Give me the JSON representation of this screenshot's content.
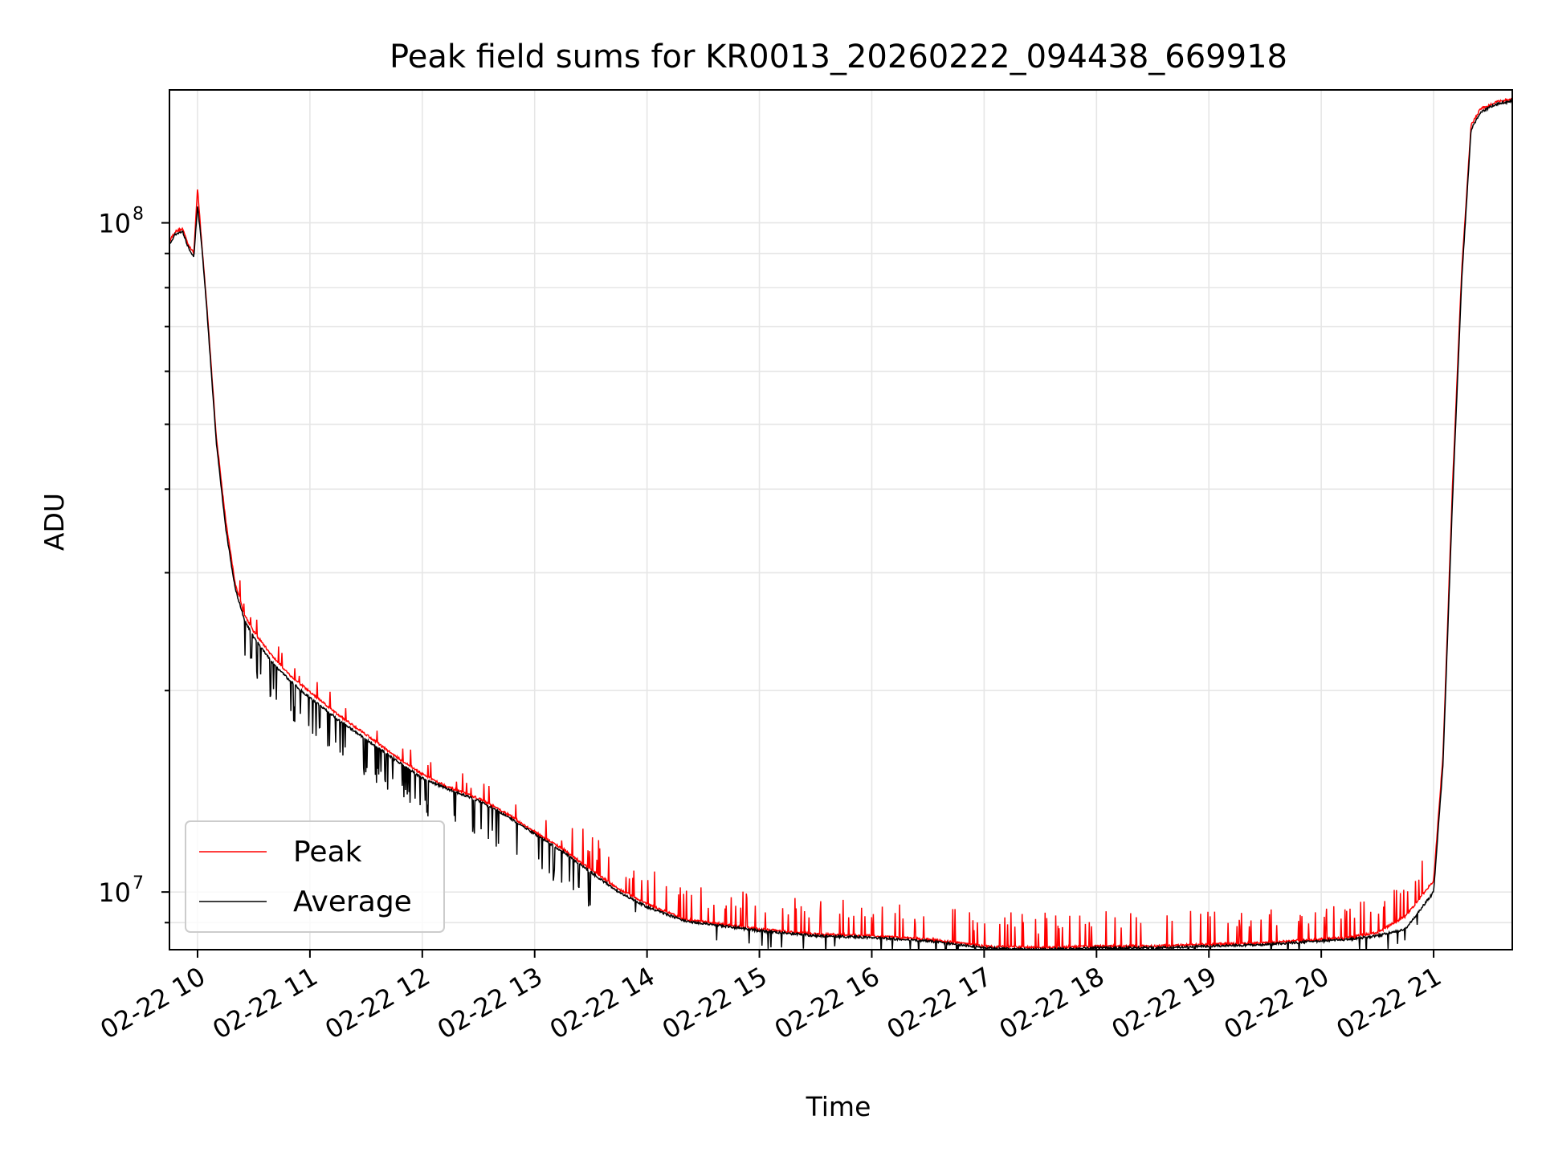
{
  "chart_data": {
    "type": "line",
    "title": "Peak field sums for KR0013_20260222_094438_669918",
    "xlabel": "Time",
    "ylabel": "ADU",
    "x_scale": "time",
    "y_scale": "log",
    "xlim": [
      "02-22 09:45",
      "02-22 21:42"
    ],
    "ylim": [
      8200000,
      158000000
    ],
    "grid": true,
    "legend_position": "lower-left",
    "x_tick_labels": [
      "02-22 10",
      "02-22 11",
      "02-22 12",
      "02-22 13",
      "02-22 14",
      "02-22 15",
      "02-22 16",
      "02-22 17",
      "02-22 18",
      "02-22 19",
      "02-22 20",
      "02-22 21"
    ],
    "x_tick_hours": [
      10,
      11,
      12,
      13,
      14,
      15,
      16,
      17,
      18,
      19,
      20,
      21
    ],
    "y_tick_labels": [
      {
        "base": "10",
        "exp": "7",
        "value": 10000000
      },
      {
        "base": "10",
        "exp": "8",
        "value": 100000000
      }
    ],
    "series": [
      {
        "name": "Peak",
        "color": "#ff0000",
        "x": [
          "02-22 09:45",
          "02-22 09:48",
          "02-22 09:52",
          "02-22 09:55",
          "02-22 09:58",
          "02-22 10:00",
          "02-22 10:02",
          "02-22 10:05",
          "02-22 10:10",
          "02-22 10:15",
          "02-22 10:20",
          "02-22 10:25",
          "02-22 10:30",
          "02-22 10:40",
          "02-22 10:50",
          "02-22 11:00",
          "02-22 11:15",
          "02-22 11:30",
          "02-22 11:45",
          "02-22 12:00",
          "02-22 12:15",
          "02-22 12:30",
          "02-22 12:45",
          "02-22 13:00",
          "02-22 13:15",
          "02-22 13:30",
          "02-22 13:45",
          "02-22 14:00",
          "02-22 14:20",
          "02-22 14:40",
          "02-22 15:00",
          "02-22 15:30",
          "02-22 16:00",
          "02-22 16:30",
          "02-22 17:00",
          "02-22 17:30",
          "02-22 18:00",
          "02-22 18:30",
          "02-22 19:00",
          "02-22 19:30",
          "02-22 20:00",
          "02-22 20:15",
          "02-22 20:30",
          "02-22 20:45",
          "02-22 21:00",
          "02-22 21:05",
          "02-22 21:10",
          "02-22 21:15",
          "02-22 21:20",
          "02-22 21:25",
          "02-22 21:30",
          "02-22 21:35",
          "02-22 21:42"
        ],
        "values": [
          94000000,
          97000000,
          98000000,
          93000000,
          90000000,
          113000000,
          95000000,
          75000000,
          48000000,
          36000000,
          29000000,
          26000000,
          24500000,
          22500000,
          21000000,
          19900000,
          18400000,
          17200000,
          16000000,
          15000000,
          14300000,
          13800000,
          13100000,
          12300000,
          11600000,
          10800000,
          10100000,
          9600000,
          9100000,
          8950000,
          8800000,
          8650000,
          8600000,
          8500000,
          8300000,
          8250000,
          8300000,
          8300000,
          8350000,
          8400000,
          8500000,
          8550000,
          8700000,
          9200000,
          10400000,
          16000000,
          40000000,
          85000000,
          140000000,
          148000000,
          150000000,
          152000000,
          153000000
        ]
      },
      {
        "name": "Average",
        "color": "#000000",
        "x": [
          "02-22 09:45",
          "02-22 09:48",
          "02-22 09:52",
          "02-22 09:55",
          "02-22 09:58",
          "02-22 10:00",
          "02-22 10:02",
          "02-22 10:05",
          "02-22 10:10",
          "02-22 10:15",
          "02-22 10:20",
          "02-22 10:25",
          "02-22 10:30",
          "02-22 10:40",
          "02-22 10:50",
          "02-22 11:00",
          "02-22 11:15",
          "02-22 11:30",
          "02-22 11:45",
          "02-22 12:00",
          "02-22 12:15",
          "02-22 12:30",
          "02-22 12:45",
          "02-22 13:00",
          "02-22 13:15",
          "02-22 13:30",
          "02-22 13:45",
          "02-22 14:00",
          "02-22 14:20",
          "02-22 14:40",
          "02-22 15:00",
          "02-22 15:30",
          "02-22 16:00",
          "02-22 16:30",
          "02-22 17:00",
          "02-22 17:30",
          "02-22 18:00",
          "02-22 18:30",
          "02-22 19:00",
          "02-22 19:30",
          "02-22 20:00",
          "02-22 20:15",
          "02-22 20:30",
          "02-22 20:45",
          "02-22 21:00",
          "02-22 21:05",
          "02-22 21:10",
          "02-22 21:15",
          "02-22 21:20",
          "02-22 21:25",
          "02-22 21:30",
          "02-22 21:35",
          "02-22 21:42"
        ],
        "values": [
          93000000,
          96000000,
          97000000,
          92000000,
          89000000,
          106000000,
          94000000,
          74000000,
          47000000,
          35000000,
          28500000,
          25500000,
          24000000,
          22000000,
          20600000,
          19500000,
          18100000,
          16900000,
          15800000,
          14800000,
          14200000,
          13700000,
          13000000,
          12200000,
          11500000,
          10700000,
          10000000,
          9500000,
          9050000,
          8900000,
          8750000,
          8600000,
          8550000,
          8450000,
          8250000,
          8200000,
          8250000,
          8250000,
          8300000,
          8350000,
          8450000,
          8500000,
          8600000,
          8800000,
          10000000,
          15500000,
          38000000,
          82000000,
          138000000,
          146000000,
          149000000,
          151000000,
          152000000
        ]
      }
    ]
  }
}
